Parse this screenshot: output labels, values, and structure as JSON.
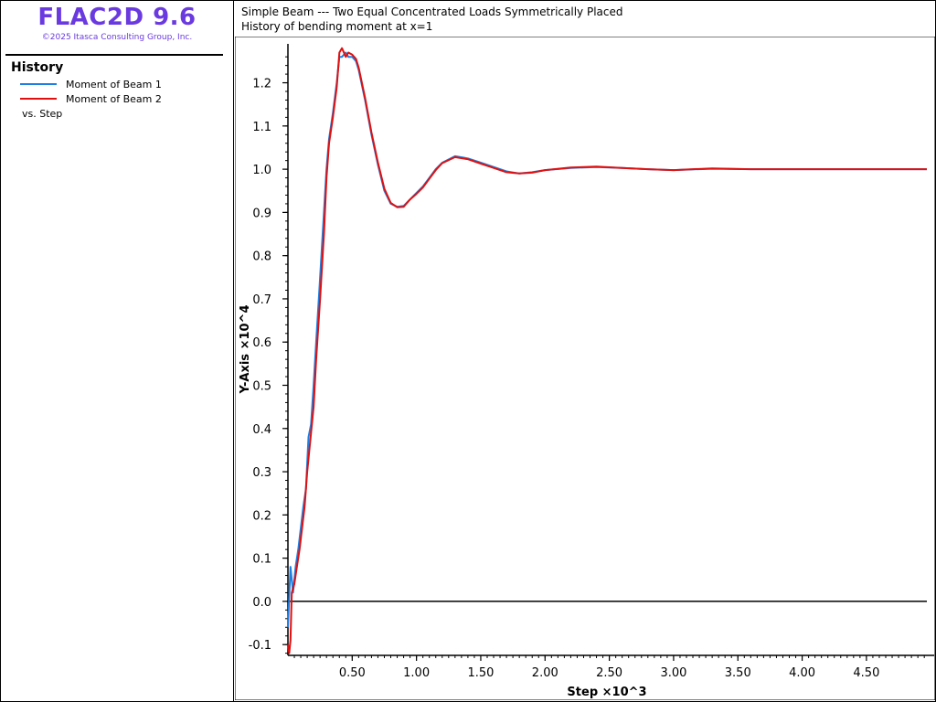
{
  "app": {
    "title": "FLAC2D 9.6",
    "copyright": "©2025 Itasca Consulting Group, Inc."
  },
  "sidebar": {
    "section_title": "History",
    "legend": [
      {
        "label": "Moment of Beam 1",
        "color": "#1f7fe0"
      },
      {
        "label": "Moment of Beam 2",
        "color": "#e01010"
      }
    ],
    "vs_label": "vs. Step"
  },
  "plot": {
    "title_line1": "Simple Beam --- Two Equal Concentrated Loads Symmetrically Placed",
    "title_line2": "History of bending moment at x=1"
  },
  "chart_data": {
    "type": "line",
    "xlabel": "Step ×10^3",
    "ylabel": "Y-Axis ×10^4",
    "xlim": [
      0.0,
      4.97
    ],
    "ylim": [
      -0.125,
      1.29
    ],
    "x_ticks": [
      "0.50",
      "1.00",
      "1.50",
      "2.00",
      "2.50",
      "3.00",
      "3.50",
      "4.00",
      "4.50"
    ],
    "x_tick_values": [
      0.5,
      1.0,
      1.5,
      2.0,
      2.5,
      3.0,
      3.5,
      4.0,
      4.5
    ],
    "y_ticks": [
      "-0.1",
      "0.0",
      "0.1",
      "0.2",
      "0.3",
      "0.4",
      "0.5",
      "0.6",
      "0.7",
      "0.8",
      "0.9",
      "1.0",
      "1.1",
      "1.2"
    ],
    "y_tick_values": [
      -0.1,
      0.0,
      0.1,
      0.2,
      0.3,
      0.4,
      0.5,
      0.6,
      0.7,
      0.8,
      0.9,
      1.0,
      1.1,
      1.2
    ],
    "zero_line": 0.0,
    "series": [
      {
        "name": "Moment of Beam 1",
        "color": "#1f7fe0",
        "x": [
          0.0,
          0.02,
          0.04,
          0.06,
          0.08,
          0.1,
          0.12,
          0.14,
          0.16,
          0.18,
          0.2,
          0.22,
          0.25,
          0.28,
          0.3,
          0.32,
          0.35,
          0.38,
          0.4,
          0.42,
          0.45,
          0.47,
          0.5,
          0.53,
          0.55,
          0.6,
          0.65,
          0.7,
          0.75,
          0.8,
          0.85,
          0.9,
          0.95,
          1.0,
          1.05,
          1.1,
          1.15,
          1.2,
          1.3,
          1.4,
          1.5,
          1.6,
          1.7,
          1.8,
          1.9,
          2.0,
          2.2,
          2.4,
          2.6,
          2.8,
          3.0,
          3.3,
          3.6,
          4.0,
          4.4,
          4.97
        ],
        "y": [
          -0.06,
          0.08,
          0.02,
          0.08,
          0.12,
          0.17,
          0.22,
          0.26,
          0.38,
          0.41,
          0.5,
          0.6,
          0.75,
          0.9,
          1.0,
          1.07,
          1.13,
          1.2,
          1.26,
          1.26,
          1.27,
          1.26,
          1.26,
          1.25,
          1.23,
          1.16,
          1.08,
          1.01,
          0.95,
          0.92,
          0.913,
          0.915,
          0.93,
          0.945,
          0.96,
          0.98,
          1.0,
          1.015,
          1.03,
          1.025,
          1.015,
          1.005,
          0.995,
          0.99,
          0.993,
          0.998,
          1.003,
          1.005,
          1.003,
          1.0,
          0.998,
          1.001,
          1.0,
          1.0,
          1.0,
          1.0
        ]
      },
      {
        "name": "Moment of Beam 2",
        "color": "#e01010",
        "x": [
          0.0,
          0.01,
          0.02,
          0.03,
          0.05,
          0.07,
          0.09,
          0.11,
          0.13,
          0.15,
          0.17,
          0.2,
          0.22,
          0.25,
          0.28,
          0.3,
          0.32,
          0.35,
          0.38,
          0.4,
          0.42,
          0.45,
          0.47,
          0.5,
          0.53,
          0.55,
          0.6,
          0.65,
          0.7,
          0.75,
          0.8,
          0.85,
          0.9,
          0.95,
          1.0,
          1.05,
          1.1,
          1.15,
          1.2,
          1.3,
          1.4,
          1.5,
          1.6,
          1.7,
          1.8,
          1.9,
          2.0,
          2.2,
          2.4,
          2.6,
          2.8,
          3.0,
          3.3,
          3.6,
          4.0,
          4.4,
          4.97
        ],
        "y": [
          -0.1,
          -0.12,
          -0.09,
          0.02,
          0.04,
          0.08,
          0.12,
          0.17,
          0.22,
          0.3,
          0.36,
          0.45,
          0.56,
          0.7,
          0.85,
          0.98,
          1.06,
          1.12,
          1.19,
          1.27,
          1.28,
          1.26,
          1.27,
          1.265,
          1.255,
          1.235,
          1.165,
          1.085,
          1.015,
          0.955,
          0.922,
          0.912,
          0.913,
          0.93,
          0.943,
          0.958,
          0.978,
          0.998,
          1.014,
          1.028,
          1.023,
          1.013,
          1.003,
          0.993,
          0.99,
          0.992,
          0.998,
          1.004,
          1.006,
          1.003,
          1.0,
          0.998,
          1.002,
          1.0,
          1.0,
          1.0,
          1.0
        ]
      }
    ]
  }
}
